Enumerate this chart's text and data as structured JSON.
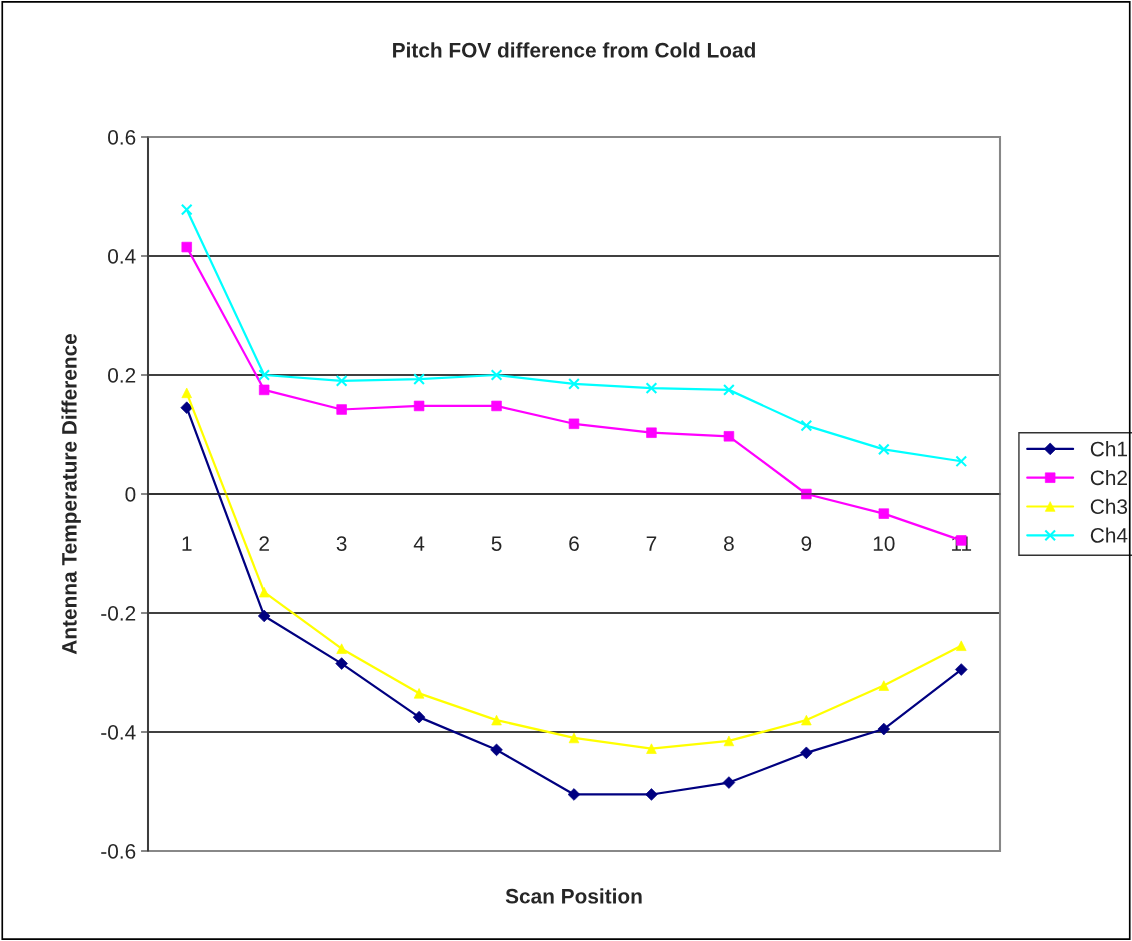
{
  "chart_data": {
    "type": "line",
    "title": "Pitch FOV difference from Cold Load",
    "xlabel": "Scan Position",
    "ylabel": "Antenna Temperature Difference",
    "categories": [
      "1",
      "2",
      "3",
      "4",
      "5",
      "6",
      "7",
      "8",
      "9",
      "10",
      "11"
    ],
    "series": [
      {
        "name": "Ch1",
        "color": "#000080",
        "marker": "diamond",
        "values": [
          0.145,
          -0.205,
          -0.285,
          -0.375,
          -0.43,
          -0.505,
          -0.505,
          -0.485,
          -0.435,
          -0.395,
          -0.295
        ]
      },
      {
        "name": "Ch2",
        "color": "#ff00ff",
        "marker": "square",
        "values": [
          0.415,
          0.175,
          0.142,
          0.148,
          0.148,
          0.118,
          0.103,
          0.097,
          0.0,
          -0.033,
          -0.078
        ]
      },
      {
        "name": "Ch3",
        "color": "#ffff00",
        "marker": "triangle",
        "values": [
          0.17,
          -0.165,
          -0.26,
          -0.335,
          -0.38,
          -0.41,
          -0.428,
          -0.415,
          -0.38,
          -0.322,
          -0.255
        ]
      },
      {
        "name": "Ch4",
        "color": "#00ffff",
        "marker": "cross",
        "values": [
          0.478,
          0.2,
          0.19,
          0.193,
          0.2,
          0.185,
          0.178,
          0.175,
          0.115,
          0.075,
          0.055
        ]
      }
    ],
    "ylim": [
      -0.6,
      0.6
    ],
    "yticks": [
      -0.6,
      -0.4,
      -0.2,
      0,
      0.2,
      0.4,
      0.6
    ],
    "grid": "y",
    "legend": "right",
    "line_style": "solid"
  }
}
